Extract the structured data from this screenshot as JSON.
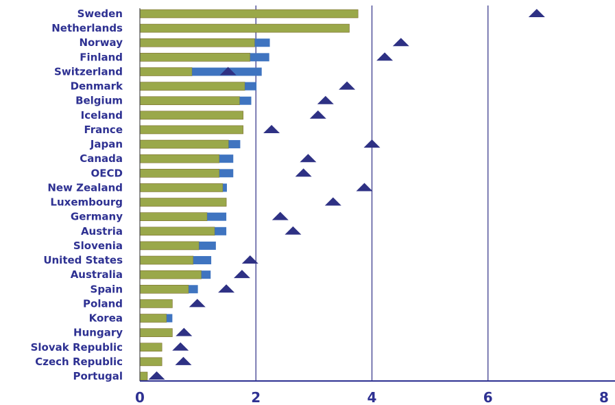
{
  "chart_data": {
    "type": "bar",
    "orientation": "horizontal",
    "stacked": true,
    "categories": [
      "Sweden",
      "Netherlands",
      "Norway",
      "Finland",
      "Switzerland",
      "Denmark",
      "Belgium",
      "Iceland",
      "France",
      "Japan",
      "Canada",
      "OECD",
      "New Zealand",
      "Luxembourg",
      "Germany",
      "Austria",
      "Slovenia",
      "United States",
      "Australia",
      "Spain",
      "Poland",
      "Korea",
      "Hungary",
      "Slovak Republic",
      "Czech Republic",
      "Portugal"
    ],
    "series": [
      {
        "kind": "bar",
        "color": "#9aa84a",
        "values": [
          3.76,
          3.61,
          1.98,
          1.9,
          0.9,
          1.81,
          1.72,
          1.78,
          1.78,
          1.53,
          1.37,
          1.37,
          1.43,
          1.49,
          1.16,
          1.29,
          1.02,
          0.92,
          1.06,
          0.84,
          0.56,
          0.46,
          0.56,
          0.38,
          0.38,
          0.13
        ]
      },
      {
        "kind": "bar",
        "color": "#3f74c0",
        "values": [
          0,
          0,
          0.26,
          0.33,
          1.2,
          0.2,
          0.2,
          0,
          0,
          0.2,
          0.24,
          0.24,
          0.07,
          0,
          0.33,
          0.2,
          0.29,
          0.31,
          0.16,
          0.16,
          0,
          0.1,
          0,
          0,
          0,
          0
        ]
      },
      {
        "kind": "marker",
        "color": "#2e3184",
        "values": [
          6.84,
          null,
          4.5,
          4.22,
          1.52,
          3.57,
          3.2,
          3.07,
          2.27,
          4.0,
          2.9,
          2.82,
          3.87,
          3.33,
          2.42,
          2.64,
          null,
          1.9,
          1.76,
          1.49,
          0.99,
          null,
          0.76,
          0.7,
          0.75,
          0.29
        ]
      }
    ],
    "xlim": [
      0,
      8
    ],
    "xticks": [
      "0",
      "2",
      "4",
      "6",
      "8"
    ],
    "grid": true,
    "colors": {
      "text": "#2e3192",
      "gridline": "#3a3a8c",
      "axis": "#2e3192"
    }
  }
}
